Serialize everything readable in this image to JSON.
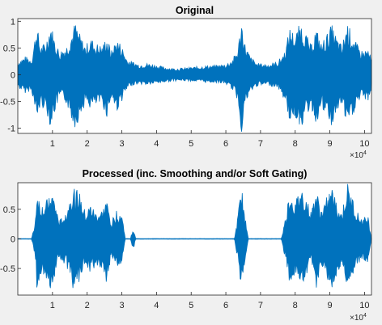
{
  "figure": {
    "background_color": "#f0f0f0",
    "axes_background_color": "#ffffff",
    "line_color": "#0072bd",
    "axis_color": "#262626"
  },
  "chart_data": [
    {
      "type": "line",
      "title": "Original",
      "xlabel": "",
      "ylabel": "",
      "xlim": [
        0,
        102000
      ],
      "ylim": [
        -1.1,
        1.05
      ],
      "x_ticks": [
        10000,
        20000,
        30000,
        40000,
        50000,
        60000,
        70000,
        80000,
        90000,
        100000
      ],
      "x_tick_labels": [
        "1",
        "2",
        "3",
        "4",
        "5",
        "6",
        "7",
        "8",
        "9",
        "10"
      ],
      "x_exponent_label": "×10",
      "x_exponent_power": "4",
      "y_ticks": [
        -1,
        -0.5,
        0,
        0.5,
        1
      ],
      "y_tick_labels": [
        "-1",
        "-0.5",
        "0",
        "0.5",
        "1"
      ],
      "grid": false,
      "series": [
        {
          "x": [
            0,
            2000,
            4000,
            5500,
            6500,
            8000,
            9500,
            10500,
            12000,
            14000,
            15500,
            16500,
            18000,
            19500,
            21000,
            22500,
            24500,
            25500,
            27000,
            28500,
            30000,
            31500,
            33000,
            35000,
            37000,
            39000,
            42000,
            45000,
            48000,
            51000,
            54000,
            57000,
            60000,
            62000,
            63500,
            64500,
            65500,
            67000,
            69000,
            72000,
            75000,
            77000,
            78500,
            80000,
            81500,
            83000,
            84500,
            86000,
            87500,
            89000,
            90500,
            92000,
            93500,
            95000,
            96500,
            98000,
            99500,
            101000,
            102000
          ],
          "upper": [
            0.25,
            0.35,
            0.3,
            0.95,
            0.55,
            0.6,
            1.0,
            0.7,
            0.45,
            0.55,
            0.8,
            1.0,
            0.75,
            0.55,
            0.7,
            0.6,
            0.55,
            0.75,
            0.45,
            0.7,
            0.55,
            0.3,
            0.25,
            0.2,
            0.22,
            0.2,
            0.15,
            0.12,
            0.13,
            0.15,
            0.17,
            0.18,
            0.2,
            0.3,
            0.5,
            1.05,
            0.6,
            0.35,
            0.22,
            0.2,
            0.25,
            0.45,
            0.9,
            0.75,
            1.0,
            0.8,
            0.55,
            0.9,
            0.6,
            0.75,
            0.95,
            0.7,
            0.55,
            1.0,
            0.75,
            0.55,
            0.45,
            0.5,
            0.3
          ],
          "lower": [
            -0.25,
            -0.35,
            -0.3,
            -0.9,
            -0.6,
            -0.65,
            -1.0,
            -0.75,
            -0.45,
            -0.55,
            -0.85,
            -1.0,
            -0.8,
            -0.55,
            -0.65,
            -0.6,
            -0.55,
            -0.85,
            -0.45,
            -0.7,
            -0.5,
            -0.3,
            -0.2,
            -0.18,
            -0.2,
            -0.18,
            -0.15,
            -0.12,
            -0.12,
            -0.13,
            -0.15,
            -0.15,
            -0.18,
            -0.3,
            -0.5,
            -1.1,
            -0.6,
            -0.35,
            -0.22,
            -0.2,
            -0.25,
            -0.5,
            -0.9,
            -0.8,
            -1.0,
            -0.85,
            -0.6,
            -0.95,
            -0.65,
            -0.8,
            -1.0,
            -0.75,
            -0.55,
            -1.05,
            -0.8,
            -0.55,
            -0.45,
            -0.5,
            -0.3
          ]
        }
      ]
    },
    {
      "type": "line",
      "title": "Processed (inc. Smoothing and/or Soft Gating)",
      "xlabel": "",
      "ylabel": "",
      "xlim": [
        0,
        102000
      ],
      "ylim": [
        -0.95,
        0.95
      ],
      "x_ticks": [
        10000,
        20000,
        30000,
        40000,
        50000,
        60000,
        70000,
        80000,
        90000,
        100000
      ],
      "x_tick_labels": [
        "1",
        "2",
        "3",
        "4",
        "5",
        "6",
        "7",
        "8",
        "9",
        "10"
      ],
      "x_exponent_label": "×10",
      "x_exponent_power": "4",
      "y_ticks": [
        -0.5,
        0,
        0.5
      ],
      "y_tick_labels": [
        "-0.5",
        "0",
        "0.5"
      ],
      "grid": false,
      "series": [
        {
          "x": [
            0,
            4000,
            5000,
            5500,
            6500,
            8000,
            9500,
            10500,
            12000,
            14000,
            15500,
            16500,
            18000,
            19500,
            21000,
            22500,
            24500,
            25500,
            27000,
            28500,
            30000,
            31000,
            32500,
            33300,
            34000,
            36000,
            45000,
            55000,
            62500,
            63500,
            64500,
            65500,
            66500,
            68000,
            76000,
            77000,
            78500,
            80000,
            81500,
            83000,
            84500,
            86000,
            87500,
            89000,
            90500,
            92000,
            93500,
            95000,
            96500,
            98000,
            99500,
            101000,
            102000
          ],
          "upper": [
            0.004,
            0.004,
            0.3,
            0.85,
            0.6,
            0.6,
            0.85,
            0.7,
            0.3,
            0.5,
            0.8,
            0.9,
            0.75,
            0.45,
            0.6,
            0.45,
            0.5,
            0.7,
            0.3,
            0.5,
            0.45,
            0.004,
            0.004,
            0.2,
            0.004,
            0.004,
            0.004,
            0.004,
            0.004,
            0.4,
            0.9,
            0.4,
            0.004,
            0.004,
            0.004,
            0.3,
            0.85,
            0.6,
            0.9,
            0.75,
            0.45,
            0.85,
            0.5,
            0.7,
            0.9,
            0.6,
            0.45,
            0.95,
            0.7,
            0.45,
            0.35,
            0.4,
            0.004
          ],
          "lower": [
            -0.004,
            -0.004,
            -0.3,
            -0.85,
            -0.6,
            -0.65,
            -0.9,
            -0.7,
            -0.3,
            -0.5,
            -0.8,
            -0.9,
            -0.75,
            -0.45,
            -0.6,
            -0.45,
            -0.5,
            -0.75,
            -0.3,
            -0.5,
            -0.45,
            -0.004,
            -0.004,
            -0.2,
            -0.004,
            -0.004,
            -0.004,
            -0.004,
            -0.004,
            -0.4,
            -0.95,
            -0.4,
            -0.004,
            -0.004,
            -0.004,
            -0.3,
            -0.85,
            -0.6,
            -0.9,
            -0.75,
            -0.45,
            -0.85,
            -0.5,
            -0.7,
            -0.9,
            -0.6,
            -0.45,
            -0.9,
            -0.7,
            -0.45,
            -0.35,
            -0.4,
            -0.004
          ]
        }
      ]
    }
  ]
}
